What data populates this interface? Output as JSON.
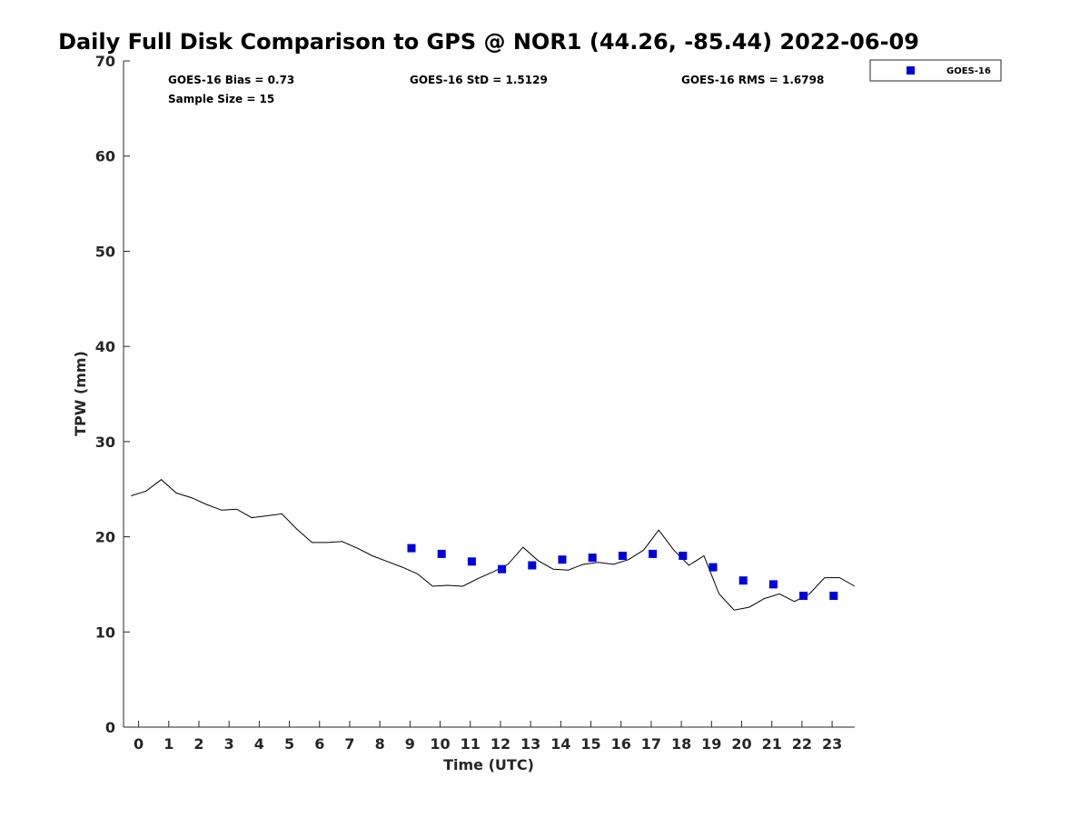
{
  "chart_data": {
    "type": "scatter",
    "title": "Daily Full Disk Comparison to GPS @ NOR1 (44.26, -85.44) 2022-06-09",
    "xlabel": "Time (UTC)",
    "ylabel": "TPW (mm)",
    "xlim": [
      -0.5,
      23.75
    ],
    "ylim": [
      0,
      70
    ],
    "xticks": [
      "0",
      "1",
      "2",
      "3",
      "4",
      "5",
      "6",
      "7",
      "8",
      "9",
      "10",
      "11",
      "12",
      "13",
      "14",
      "15",
      "16",
      "17",
      "18",
      "19",
      "20",
      "21",
      "22",
      "23"
    ],
    "yticks": [
      "0",
      "10",
      "20",
      "30",
      "40",
      "50",
      "60",
      "70"
    ],
    "grid": false,
    "legend_position": "top-right",
    "stats": {
      "bias": "GOES-16 Bias = 0.73",
      "sample_size": "Sample Size = 15",
      "std": "GOES-16 StD = 1.5129",
      "rms": "GOES-16 RMS = 1.6798"
    },
    "series": [
      {
        "name": "GOES-16",
        "kind": "markers",
        "color": "#0000dd",
        "marker": "square",
        "x": [
          9.05,
          10.05,
          11.05,
          12.05,
          13.05,
          14.05,
          15.05,
          16.05,
          17.05,
          18.05,
          19.05,
          20.05,
          21.05,
          22.05,
          23.05
        ],
        "y": [
          18.8,
          18.2,
          17.4,
          16.6,
          17.0,
          17.6,
          17.8,
          18.0,
          18.2,
          18.0,
          16.8,
          15.4,
          15.0,
          13.8,
          13.8
        ]
      },
      {
        "kind": "line",
        "color": "#000000",
        "x": [
          -0.25,
          0.25,
          0.75,
          1.25,
          1.75,
          2.25,
          2.75,
          3.25,
          3.75,
          4.25,
          4.75,
          5.25,
          5.75,
          6.25,
          6.75,
          7.25,
          7.75,
          8.25,
          8.75,
          9.25,
          9.75,
          10.25,
          10.75,
          11.25,
          11.75,
          12.25,
          12.75,
          13.25,
          13.75,
          14.25,
          14.75,
          15.25,
          15.75,
          16.25,
          16.75,
          17.25,
          17.75,
          18.25,
          18.75,
          19.25,
          19.75,
          20.25,
          20.75,
          21.25,
          21.75,
          22.25,
          22.75,
          23.25,
          23.75
        ],
        "y": [
          24.3,
          24.8,
          26.0,
          24.6,
          24.1,
          23.4,
          22.8,
          22.9,
          22.0,
          22.2,
          22.4,
          20.8,
          19.4,
          19.4,
          19.5,
          18.8,
          18.0,
          17.4,
          16.8,
          16.1,
          14.8,
          14.9,
          14.8,
          15.6,
          16.3,
          17.1,
          18.9,
          17.5,
          16.6,
          16.5,
          17.1,
          17.3,
          17.1,
          17.6,
          18.6,
          20.7,
          18.6,
          17.0,
          18.0,
          14.0,
          12.3,
          12.6,
          13.5,
          14.0,
          13.2,
          14.0,
          15.7,
          15.7,
          14.8
        ]
      }
    ]
  }
}
